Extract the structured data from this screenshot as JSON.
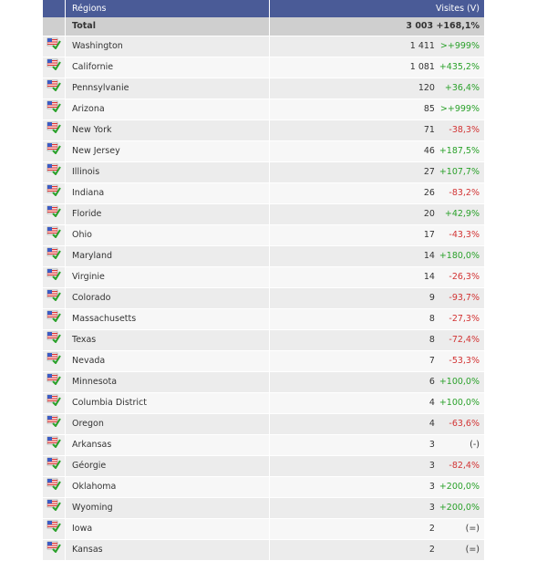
{
  "header": {
    "region_label": "Régions",
    "visits_label": "Visites (V)"
  },
  "colors": {
    "header_bg": "#4a5b97",
    "positive": "#2aa12a",
    "negative": "#d23333"
  },
  "icon": "usa-flag-check-icon",
  "total": {
    "label": "Total",
    "visits": "3 003",
    "change": "+168,1%"
  },
  "rows": [
    {
      "region": "Washington",
      "visits": "1 411",
      "change": ">+999%",
      "trend": "pos"
    },
    {
      "region": "Californie",
      "visits": "1 081",
      "change": "+435,2%",
      "trend": "pos"
    },
    {
      "region": "Pennsylvanie",
      "visits": "120",
      "change": "+36,4%",
      "trend": "pos"
    },
    {
      "region": "Arizona",
      "visits": "85",
      "change": ">+999%",
      "trend": "pos"
    },
    {
      "region": "New York",
      "visits": "71",
      "change": "-38,3%",
      "trend": "neg"
    },
    {
      "region": "New Jersey",
      "visits": "46",
      "change": "+187,5%",
      "trend": "pos"
    },
    {
      "region": "Illinois",
      "visits": "27",
      "change": "+107,7%",
      "trend": "pos"
    },
    {
      "region": "Indiana",
      "visits": "26",
      "change": "-83,2%",
      "trend": "neg"
    },
    {
      "region": "Floride",
      "visits": "20",
      "change": "+42,9%",
      "trend": "pos"
    },
    {
      "region": "Ohio",
      "visits": "17",
      "change": "-43,3%",
      "trend": "neg"
    },
    {
      "region": "Maryland",
      "visits": "14",
      "change": "+180,0%",
      "trend": "pos"
    },
    {
      "region": "Virginie",
      "visits": "14",
      "change": "-26,3%",
      "trend": "neg"
    },
    {
      "region": "Colorado",
      "visits": "9",
      "change": "-93,7%",
      "trend": "neg"
    },
    {
      "region": "Massachusetts",
      "visits": "8",
      "change": "-27,3%",
      "trend": "neg"
    },
    {
      "region": "Texas",
      "visits": "8",
      "change": "-72,4%",
      "trend": "neg"
    },
    {
      "region": "Nevada",
      "visits": "7",
      "change": "-53,3%",
      "trend": "neg"
    },
    {
      "region": "Minnesota",
      "visits": "6",
      "change": "+100,0%",
      "trend": "pos"
    },
    {
      "region": "Columbia District",
      "visits": "4",
      "change": "+100,0%",
      "trend": "pos"
    },
    {
      "region": "Oregon",
      "visits": "4",
      "change": "-63,6%",
      "trend": "neg"
    },
    {
      "region": "Arkansas",
      "visits": "3",
      "change": "(-)",
      "trend": "neu"
    },
    {
      "region": "Géorgie",
      "visits": "3",
      "change": "-82,4%",
      "trend": "neg"
    },
    {
      "region": "Oklahoma",
      "visits": "3",
      "change": "+200,0%",
      "trend": "pos"
    },
    {
      "region": "Wyoming",
      "visits": "3",
      "change": "+200,0%",
      "trend": "pos"
    },
    {
      "region": "Iowa",
      "visits": "2",
      "change": "(=)",
      "trend": "neu"
    },
    {
      "region": "Kansas",
      "visits": "2",
      "change": "(=)",
      "trend": "neu"
    }
  ]
}
